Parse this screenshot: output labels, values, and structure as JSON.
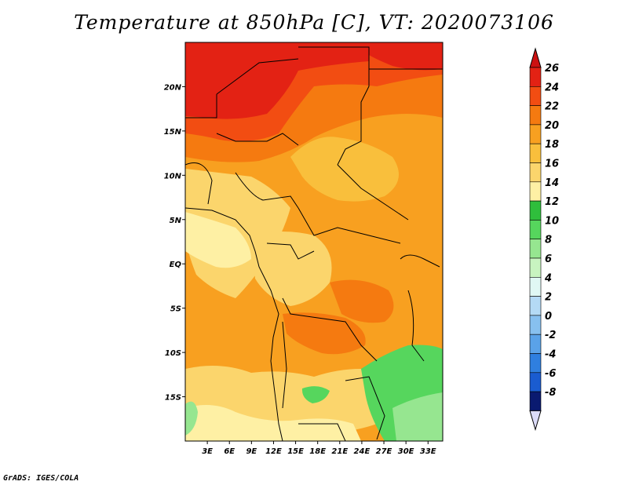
{
  "title": "Temperature at 850hPa [C], VT: 2020073106",
  "credit": "GrADS: IGES/COLA",
  "map": {
    "lon_range": [
      0,
      35
    ],
    "lat_range": [
      -20,
      25
    ],
    "lat_ticks": [
      {
        "value": 20,
        "label": "20N"
      },
      {
        "value": 15,
        "label": "15N"
      },
      {
        "value": 10,
        "label": "10N"
      },
      {
        "value": 5,
        "label": "5N"
      },
      {
        "value": 0,
        "label": "EQ"
      },
      {
        "value": -5,
        "label": "5S"
      },
      {
        "value": -10,
        "label": "10S"
      },
      {
        "value": -15,
        "label": "15S"
      }
    ],
    "lon_ticks": [
      {
        "value": 3,
        "label": "3E"
      },
      {
        "value": 6,
        "label": "6E"
      },
      {
        "value": 9,
        "label": "9E"
      },
      {
        "value": 12,
        "label": "12E"
      },
      {
        "value": 15,
        "label": "15E"
      },
      {
        "value": 18,
        "label": "18E"
      },
      {
        "value": 21,
        "label": "21E"
      },
      {
        "value": 24,
        "label": "24E"
      },
      {
        "value": 27,
        "label": "27E"
      },
      {
        "value": 30,
        "label": "30E"
      },
      {
        "value": 33,
        "label": "33E"
      }
    ]
  },
  "colorbar": {
    "levels": [
      {
        "label": "26",
        "color": "#e32214"
      },
      {
        "label": "24",
        "color": "#f24d12"
      },
      {
        "label": "22",
        "color": "#f57a10"
      },
      {
        "label": "20",
        "color": "#f8a020"
      },
      {
        "label": "18",
        "color": "#f9bf3c"
      },
      {
        "label": "16",
        "color": "#fbd56c"
      },
      {
        "label": "14",
        "color": "#fef0a4"
      },
      {
        "label": "12",
        "color": "#2fbe3c"
      },
      {
        "label": "10",
        "color": "#56d65d"
      },
      {
        "label": "8",
        "color": "#96e690"
      },
      {
        "label": "6",
        "color": "#c8f4c0"
      },
      {
        "label": "4",
        "color": "#e0f8f4"
      },
      {
        "label": "2",
        "color": "#b4daf5"
      },
      {
        "label": "0",
        "color": "#87c0ef"
      },
      {
        "label": "-2",
        "color": "#5aa2e8"
      },
      {
        "label": "-4",
        "color": "#2f7fdf"
      },
      {
        "label": "-6",
        "color": "#1a5cd0"
      },
      {
        "label": "-8",
        "color": "#0e3eb3"
      }
    ],
    "top_color": "#cc1111",
    "bottom_color": "#dcdcf8",
    "last_segment_color": "#0a1a70"
  }
}
